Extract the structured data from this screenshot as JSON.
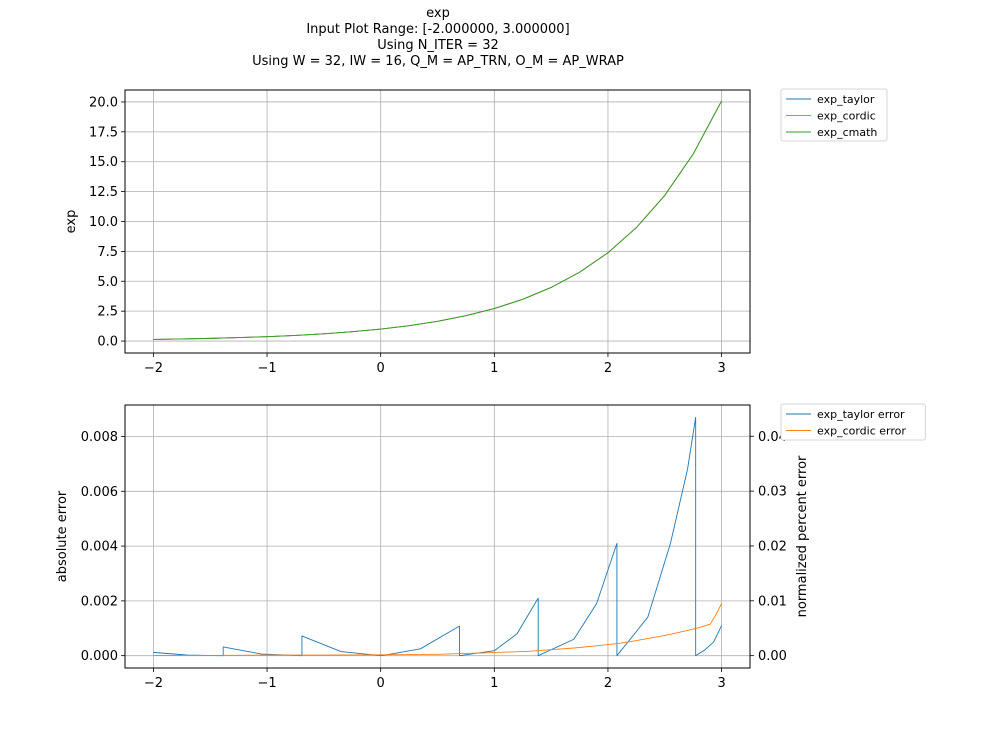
{
  "title_lines": [
    "exp",
    "Input Plot Range: [-2.000000, 3.000000]",
    "Using N_ITER = 32",
    "Using W = 32, IW = 16, Q_M = AP_TRN, O_M = AP_WRAP"
  ],
  "chart_data": [
    {
      "type": "line",
      "title": "",
      "xlabel": "",
      "ylabel": "exp",
      "xlim": [
        -2.25,
        3.25
      ],
      "ylim": [
        -1.0,
        21.0
      ],
      "xticks": [
        -2,
        -1,
        0,
        1,
        2,
        3
      ],
      "xtick_labels": [
        "−2",
        "−1",
        "0",
        "1",
        "2",
        "3"
      ],
      "yticks": [
        0,
        2.5,
        5,
        7.5,
        10,
        12.5,
        15,
        17.5,
        20
      ],
      "ytick_labels": [
        "0.0",
        "2.5",
        "5.0",
        "7.5",
        "10.0",
        "12.5",
        "15.0",
        "17.5",
        "20.0"
      ],
      "grid": true,
      "legend_position": "outside-top-right",
      "series": [
        {
          "name": "exp_taylor",
          "color": "#1f77b4"
        },
        {
          "name": "exp_cordic",
          "color": "#ff7f0e"
        },
        {
          "name": "exp_cmath",
          "color": "#2ca02c"
        }
      ],
      "x": [
        -2.0,
        -1.75,
        -1.5,
        -1.25,
        -1.0,
        -0.75,
        -0.5,
        -0.25,
        0.0,
        0.25,
        0.5,
        0.75,
        1.0,
        1.25,
        1.5,
        1.75,
        2.0,
        2.25,
        2.5,
        2.75,
        3.0
      ],
      "y": [
        0.135,
        0.174,
        0.223,
        0.287,
        0.368,
        0.472,
        0.607,
        0.779,
        1.0,
        1.284,
        1.649,
        2.117,
        2.718,
        3.49,
        4.482,
        5.755,
        7.389,
        9.488,
        12.182,
        15.643,
        20.086
      ]
    },
    {
      "type": "line",
      "title": "",
      "xlabel": "",
      "ylabel": "absolute error",
      "ylabel_right": "normalized percent error",
      "xlim": [
        -2.25,
        3.25
      ],
      "ylim": [
        -0.00045,
        0.00915
      ],
      "ylim_right": [
        -0.00225,
        0.0457
      ],
      "xticks": [
        -2,
        -1,
        0,
        1,
        2,
        3
      ],
      "xtick_labels": [
        "−2",
        "−1",
        "0",
        "1",
        "2",
        "3"
      ],
      "yticks": [
        0,
        0.002,
        0.004,
        0.006,
        0.008
      ],
      "ytick_labels": [
        "0.000",
        "0.002",
        "0.004",
        "0.006",
        "0.008"
      ],
      "yticks_right": [
        0,
        0.01,
        0.02,
        0.03,
        0.04
      ],
      "ytick_labels_right": [
        "0.00",
        "0.01",
        "0.02",
        "0.03",
        "0.04"
      ],
      "grid": true,
      "legend_position": "outside-top-right",
      "series": [
        {
          "name": "exp_taylor error",
          "color": "#1f77b4",
          "x": [
            -2.0,
            -1.7,
            -1.386,
            -1.386,
            -1.05,
            -0.693,
            -0.693,
            -0.35,
            -0.02,
            0.02,
            0.35,
            0.693,
            0.693,
            1.0,
            1.2,
            1.386,
            1.386,
            1.7,
            1.9,
            2.079,
            2.079,
            2.35,
            2.55,
            2.7,
            2.772,
            2.772,
            2.85,
            2.93,
            3.0
          ],
          "y": [
            0.00012,
            2e-05,
            0.0,
            0.00032,
            6e-05,
            0.0,
            0.00072,
            0.00015,
            1e-05,
            1e-05,
            0.00025,
            0.00108,
            0.0,
            0.00018,
            0.0008,
            0.0021,
            0.0,
            0.0006,
            0.0019,
            0.0041,
            0.0,
            0.0014,
            0.0041,
            0.0068,
            0.0087,
            0.0,
            0.0002,
            0.0005,
            0.0011
          ]
        },
        {
          "name": "exp_cordic error",
          "color": "#ff7f0e",
          "x": [
            -2.0,
            -1.5,
            -1.0,
            -0.5,
            0.0,
            0.5,
            0.9,
            1.1,
            1.3,
            1.5,
            1.7,
            1.9,
            2.1,
            2.25,
            2.4,
            2.55,
            2.7,
            2.8,
            2.9,
            2.95,
            3.0
          ],
          "y": [
            1e-05,
            1e-05,
            2e-05,
            2e-05,
            3e-05,
            5e-05,
            0.0001,
            0.00013,
            0.00016,
            0.00022,
            0.00028,
            0.00036,
            0.00045,
            0.00055,
            0.00066,
            0.00078,
            0.00092,
            0.00102,
            0.00115,
            0.0015,
            0.0019
          ]
        }
      ]
    }
  ]
}
